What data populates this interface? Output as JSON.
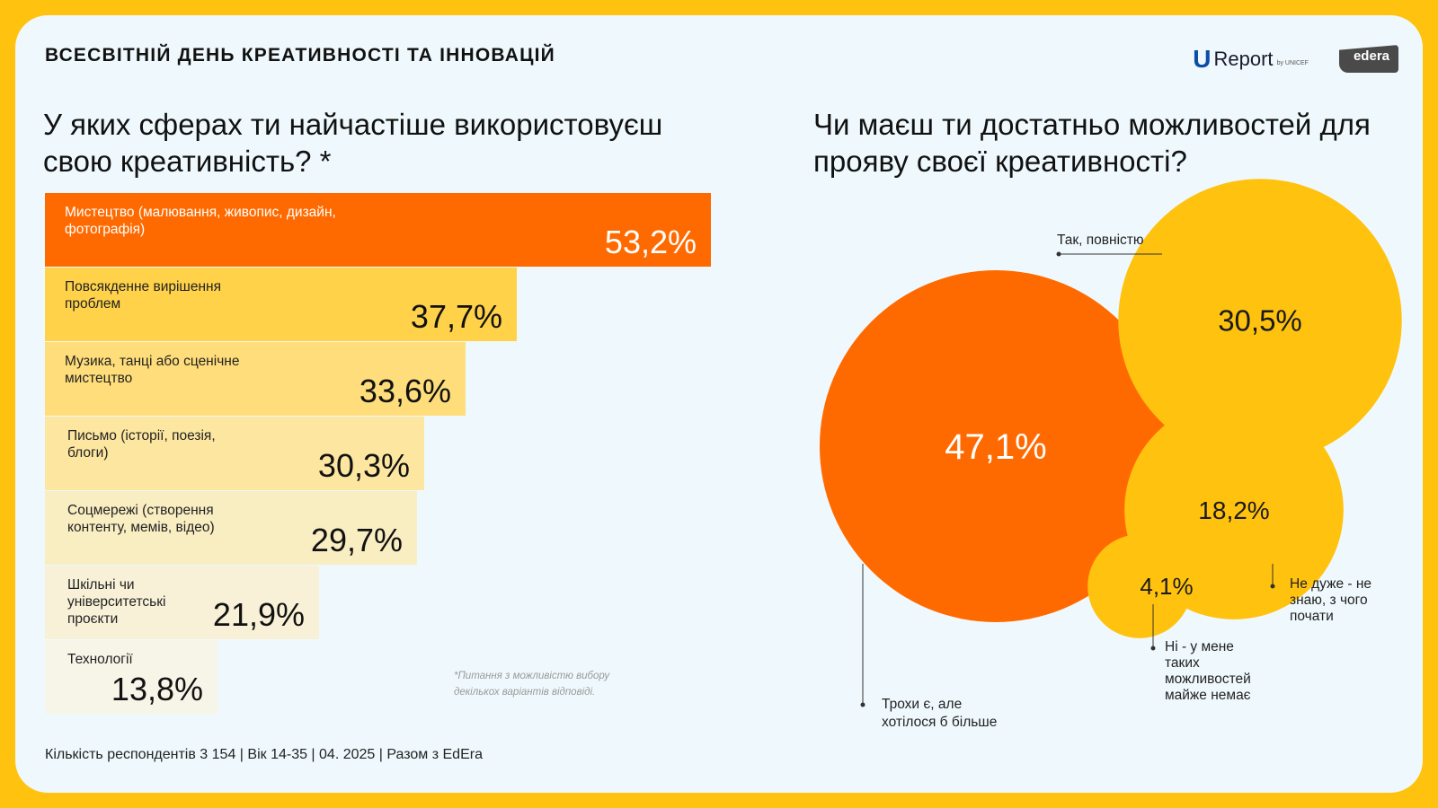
{
  "header": {
    "title": "ВСЕСВІТНІЙ ДЕНЬ КРЕАТИВНОСТІ ТА ІННОВАЦІЙ",
    "logo_ureport": "Report",
    "logo_ureport_by": "by UNICEF",
    "logo_edera": "edera"
  },
  "left_question": "У яких сферах ти найчастіше використовуєш свою креативність? *",
  "right_question": "Чи маєш ти достатньо можливостей для прояву своєї креативності?",
  "footnote_line1": "*Питання з можливістю вибору",
  "footnote_line2": "декількох варіантів відповіді.",
  "footer": "Кількість респондентів 3 154 | Вік 14-35 | 04. 2025 | Разом з EdEra",
  "colors": {
    "orange": "#FF6A00",
    "yellow": "#FFC20E",
    "background": "#EFF9FD",
    "bar_shades": [
      "#FF6A00",
      "#FFD24A",
      "#FEDD7A",
      "#FDE6A0",
      "#F9EDC2",
      "#F8F1D8",
      "#F7F4E8"
    ]
  },
  "chart_data": [
    {
      "type": "bar",
      "orientation": "horizontal",
      "categories": [
        "Мистецтво (малювання, живопис, дизайн, фотографія)",
        "Повсякденне вирішення проблем",
        "Музика, танці або сценічне мистецтво",
        "Письмо (історії, поезія, блоги)",
        "Соцмережі (створення контенту, мемів, відео)",
        "Шкільні чи університетські проєкти",
        "Технології"
      ],
      "label_lines": [
        [
          "Мистецтво (малювання, живопис, дизайн,",
          "фотографія)"
        ],
        [
          "Повсякденне вирішення",
          "проблем"
        ],
        [
          "Музика, танці або сценічне",
          "мистецтво"
        ],
        [
          "Письмо (історії, поезія,",
          "блоги)"
        ],
        [
          "Соцмережі (створення",
          "контенту, мемів, відео)"
        ],
        [
          "Шкільні чи",
          "університетські",
          "проєкти"
        ],
        [
          "Технології"
        ]
      ],
      "values": [
        53.2,
        37.7,
        33.6,
        30.3,
        29.7,
        21.9,
        13.8
      ],
      "value_labels": [
        "53,2%",
        "37,7%",
        "33,6%",
        "30,3%",
        "29,7%",
        "21,9%",
        "13,8%"
      ]
    },
    {
      "type": "bubble",
      "categories": [
        "Трохи є, але хотілося б більше",
        "Так, повністю",
        "Не дуже - не знаю, з чого почати",
        "Ні - у мене таких можливостей майже немає"
      ],
      "values": [
        47.1,
        30.5,
        18.2,
        4.1
      ],
      "value_labels": [
        "47,1%",
        "30,5%",
        "18,2%",
        "4,1%"
      ],
      "label_lines": [
        [
          "Трохи є, але",
          "хотілося б більше"
        ],
        [
          "Так, повністю"
        ],
        [
          "Не дуже - не",
          "знаю, з чого",
          "почати"
        ],
        [
          "Ні - у мене",
          "таких",
          "можливостей",
          "майже немає"
        ]
      ],
      "colors": [
        "#FF6A00",
        "#FFC20E",
        "#FFC20E",
        "#FFC20E"
      ]
    }
  ]
}
